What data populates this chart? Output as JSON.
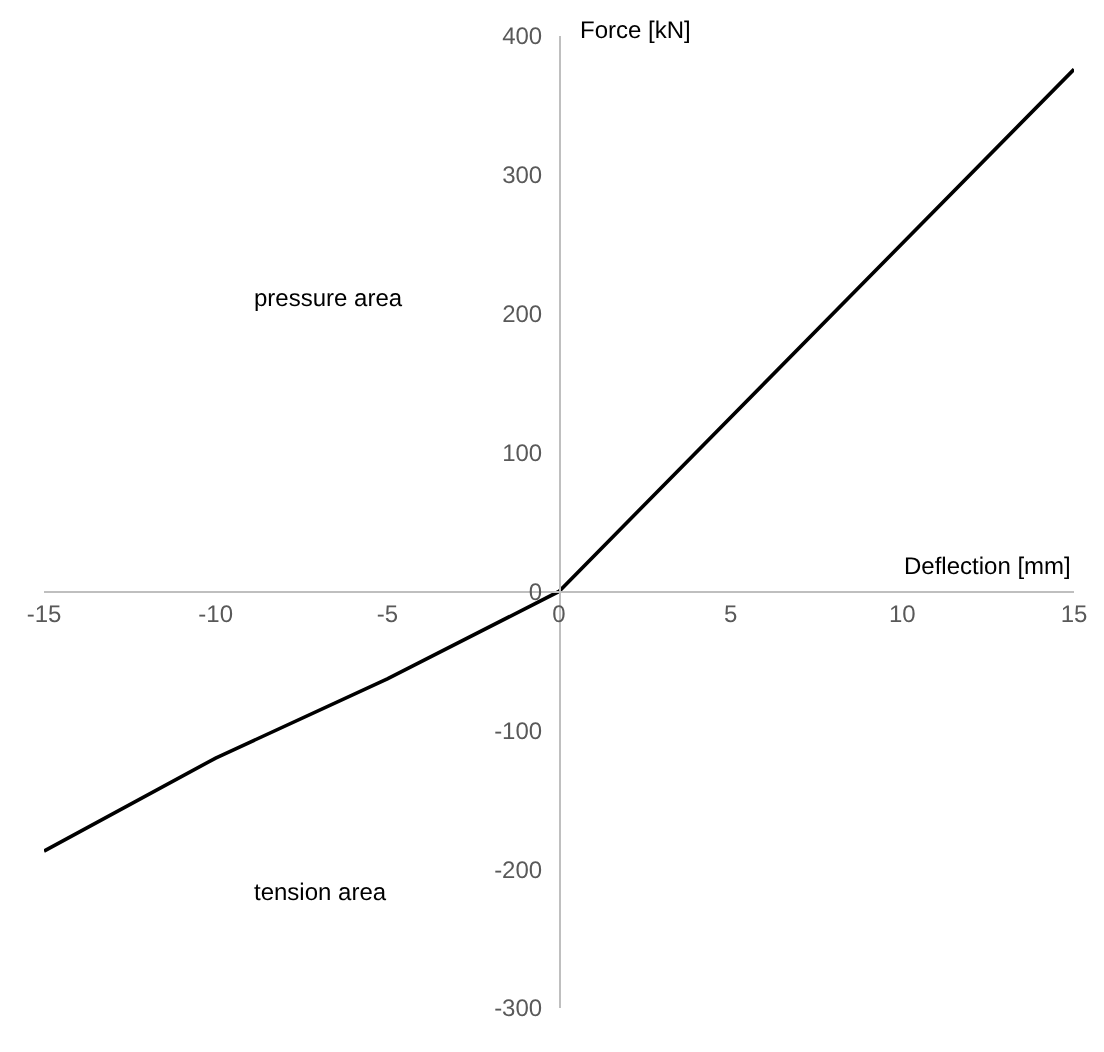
{
  "chart_data": {
    "type": "line",
    "xlabel": "Deflection [mm]",
    "ylabel": "Force [kN]",
    "x": [
      -15,
      -10,
      -5,
      0,
      15
    ],
    "series": [
      {
        "color": "#000000",
        "values": [
          -187,
          -120,
          -63,
          0,
          376
        ]
      }
    ],
    "xlim": [
      -15,
      15
    ],
    "xticks": [
      -15,
      -10,
      -5,
      0,
      5,
      10,
      15
    ],
    "ylim": [
      -300,
      400
    ],
    "yticks": [
      -300,
      -200,
      -100,
      0,
      100,
      200,
      300,
      400
    ],
    "annotations": [
      "pressure area",
      "tension area"
    ],
    "legend": false,
    "marker": "none",
    "line_style": "solid"
  }
}
